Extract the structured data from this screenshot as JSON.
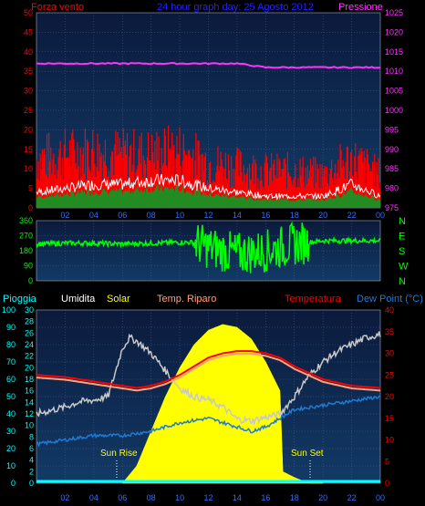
{
  "colors": {
    "background": "#000000",
    "plot_top": "#0b1a3c",
    "plot_bottom": "#123a66",
    "wind_gust": "#ff0000",
    "wind_avg": "#ffffff",
    "wind_fill": "#228b22",
    "pressure": "#ff33ff",
    "direction": "#00ff00",
    "temperature": "#ff0000",
    "temp_shade": "#ffa07a",
    "humidity": "#c8c8c8",
    "dew_point": "#1e7bd2",
    "solar": "#ffff00",
    "rain": "#00ffff",
    "axis_left_top": "#ff0000",
    "axis_right_top": "#ff33ff",
    "axis_mid": "#00ff00",
    "axis_rain": "#00ffff",
    "axis_temp": "#ff0000"
  },
  "top": {
    "left_title": "Forza vento",
    "center_title": "24 hour graph day:  25 Agosto 2012",
    "right_title": "Pressione"
  },
  "legend": {
    "rain": "Pioggia",
    "humidity": "Umidita",
    "solar": "Solar",
    "temp_shade": "Temp. Riparo",
    "temperature": "Temperatura",
    "dew_point": "Dew Point (°C)"
  },
  "annotations": {
    "sunrise": "Sun Rise",
    "sunset": "Sun Set"
  },
  "chart_data": [
    {
      "type": "line",
      "name": "wind-pressure",
      "x_ticks": [
        "02",
        "04",
        "06",
        "08",
        "10",
        "12",
        "14",
        "16",
        "18",
        "20",
        "22",
        "00"
      ],
      "x_range_hours": [
        0,
        24
      ],
      "y_left_ticks": [
        0,
        5,
        10,
        15,
        20,
        25,
        30,
        35,
        40,
        45,
        50
      ],
      "y_left_range": [
        0,
        50
      ],
      "y_right_ticks": [
        975,
        980,
        985,
        990,
        995,
        1000,
        1005,
        1010,
        1015,
        1020,
        1025
      ],
      "y_right_range": [
        975,
        1025
      ],
      "series": [
        {
          "key": "gust",
          "hours": [
            0,
            2,
            4,
            6,
            8,
            10,
            12,
            14,
            16,
            18,
            20,
            22,
            24
          ],
          "values": [
            12,
            13,
            14,
            13,
            13,
            14,
            11,
            10,
            9,
            9,
            8,
            12,
            8
          ]
        },
        {
          "key": "avg",
          "hours": [
            0,
            2,
            4,
            6,
            8,
            10,
            12,
            14,
            16,
            18,
            20,
            22,
            24
          ],
          "values": [
            4,
            5,
            6,
            6,
            7,
            7,
            5,
            4,
            3,
            3,
            3,
            6,
            3
          ]
        },
        {
          "key": "pressure",
          "hours": [
            0,
            2,
            4,
            6,
            8,
            10,
            12,
            14,
            16,
            18,
            20,
            22,
            24
          ],
          "values": [
            1012,
            1012,
            1012,
            1012,
            1012,
            1012,
            1012,
            1012,
            1011,
            1011,
            1011,
            1011,
            1011
          ]
        }
      ]
    },
    {
      "type": "line",
      "name": "wind-direction",
      "y_ticks": [
        0,
        90,
        180,
        270,
        360
      ],
      "y_range": [
        0,
        360
      ],
      "y_right_ticks": [
        "N",
        "W",
        "S",
        "E",
        "N"
      ],
      "series": [
        {
          "key": "direction",
          "hours": [
            0,
            2,
            4,
            6,
            8,
            10,
            11,
            12,
            14,
            16,
            18,
            20,
            22,
            24
          ],
          "values": [
            220,
            225,
            225,
            220,
            225,
            230,
            230,
            200,
            160,
            180,
            220,
            240,
            240,
            240
          ]
        }
      ]
    },
    {
      "type": "line",
      "name": "temperature-humidity-solar",
      "y_left_ticks": [
        0,
        10,
        20,
        30,
        40,
        50,
        60,
        70,
        80,
        90,
        100
      ],
      "y_left_range": [
        0,
        100
      ],
      "y_inner_ticks": [
        0,
        2,
        4,
        6,
        8,
        10,
        12,
        14,
        16,
        18,
        20,
        22,
        24,
        26,
        28,
        30
      ],
      "y_right_ticks": [
        0,
        5,
        10,
        15,
        20,
        25,
        30,
        35,
        40
      ],
      "y_right_range": [
        0,
        40
      ],
      "series": [
        {
          "key": "temperature",
          "hours": [
            0,
            2,
            4,
            6,
            7,
            8,
            9,
            10,
            11,
            12,
            13,
            14,
            15,
            16,
            17,
            18,
            20,
            22,
            24
          ],
          "values": [
            25,
            24.5,
            23.5,
            22.5,
            22,
            22.5,
            23.5,
            25,
            27,
            29,
            30,
            30.5,
            30.5,
            30,
            29,
            27,
            24,
            22.5,
            22
          ]
        },
        {
          "key": "humidity",
          "hours": [
            0,
            1,
            2,
            3,
            4,
            5,
            6,
            6.5,
            7,
            8,
            9,
            10,
            11,
            12,
            13,
            14,
            15,
            16,
            17,
            18,
            19,
            20,
            21,
            22,
            23,
            24
          ],
          "values": [
            40,
            42,
            44,
            47,
            48,
            50,
            78,
            84,
            82,
            75,
            65,
            55,
            50,
            48,
            44,
            37,
            36,
            38,
            40,
            50,
            62,
            70,
            76,
            80,
            84,
            86
          ]
        },
        {
          "key": "dew_point",
          "hours": [
            0,
            2,
            4,
            6,
            8,
            10,
            12,
            13,
            14,
            15,
            16,
            18,
            20,
            22,
            24
          ],
          "values": [
            9,
            10,
            11,
            11,
            12,
            14,
            15,
            14,
            13,
            12,
            13,
            17,
            18,
            19,
            20
          ]
        },
        {
          "key": "solar_scaled",
          "hours": [
            6,
            7,
            8,
            9,
            10,
            11,
            12,
            13,
            14,
            15,
            16,
            17,
            17.2,
            18,
            19,
            20
          ],
          "values": [
            0,
            3,
            9,
            15,
            20,
            24,
            26.5,
            27.5,
            27,
            25,
            21,
            16,
            2,
            1,
            0,
            0
          ]
        },
        {
          "key": "rain",
          "hours": [
            0,
            24
          ],
          "values": [
            0,
            0
          ]
        }
      ],
      "sunrise_hour": 5.6,
      "sunset_hour": 19.1
    }
  ]
}
